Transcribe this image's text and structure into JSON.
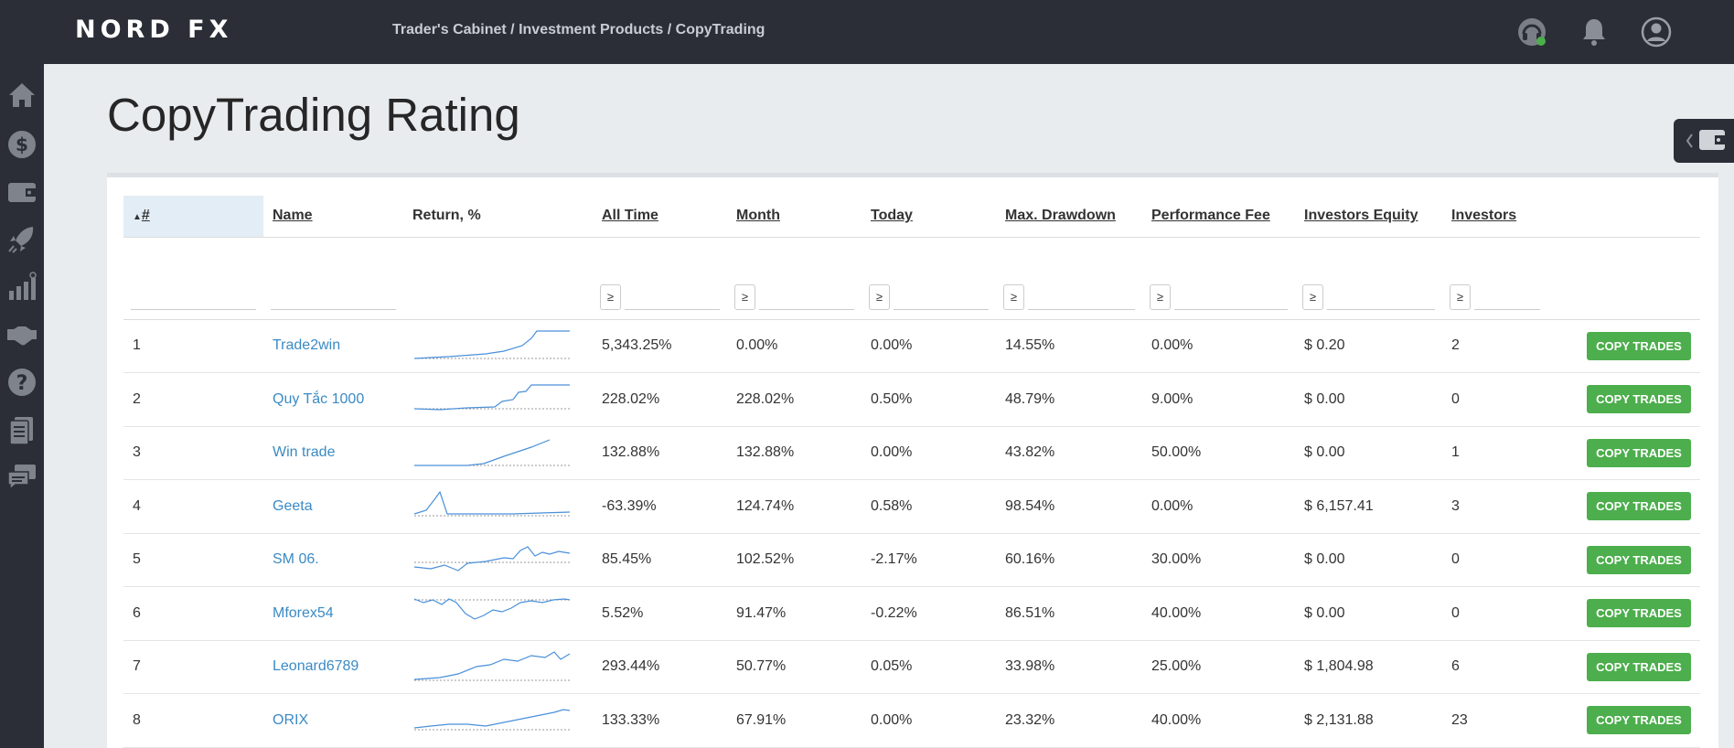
{
  "header": {
    "logo": "NORD FX",
    "breadcrumb": "Trader's Cabinet / Investment Products / CopyTrading",
    "icons": [
      "headset-icon",
      "bell-icon",
      "user-icon"
    ]
  },
  "sidebar": {
    "icons": [
      "home-icon",
      "dollar-icon",
      "wallet-icon",
      "rocket-icon",
      "chart-icon",
      "handshake-icon",
      "help-icon",
      "documents-icon",
      "chat-icon"
    ]
  },
  "page": {
    "title": "CopyTrading Rating"
  },
  "table": {
    "columns": {
      "rank": "#",
      "name": "Name",
      "return": "Return, %",
      "all_time": "All Time",
      "month": "Month",
      "today": "Today",
      "max_drawdown": "Max. Drawdown",
      "performance_fee": "Performance Fee",
      "investors_equity": "Investors Equity",
      "investors": "Investors"
    },
    "sort_indicator": "▲",
    "filter_symbol": "≥",
    "copy_label": "COPY TRADES",
    "rows": [
      {
        "rank": "1",
        "name": "Trade2win",
        "all_time": "5,343.25%",
        "month": "0.00%",
        "today": "0.00%",
        "drawdown": "14.55%",
        "fee": "0.00%",
        "equity": "$ 0.20",
        "investors": "2"
      },
      {
        "rank": "2",
        "name": "Quy Tắc 1000",
        "all_time": "228.02%",
        "month": "228.02%",
        "today": "0.50%",
        "drawdown": "48.79%",
        "fee": "9.00%",
        "equity": "$ 0.00",
        "investors": "0"
      },
      {
        "rank": "3",
        "name": "Win trade",
        "all_time": "132.88%",
        "month": "132.88%",
        "today": "0.00%",
        "drawdown": "43.82%",
        "fee": "50.00%",
        "equity": "$ 0.00",
        "investors": "1"
      },
      {
        "rank": "4",
        "name": "Geeta",
        "all_time": "-63.39%",
        "month": "124.74%",
        "today": "0.58%",
        "drawdown": "98.54%",
        "fee": "0.00%",
        "equity": "$ 6,157.41",
        "investors": "3"
      },
      {
        "rank": "5",
        "name": "SM 06.",
        "all_time": "85.45%",
        "month": "102.52%",
        "today": "-2.17%",
        "drawdown": "60.16%",
        "fee": "30.00%",
        "equity": "$ 0.00",
        "investors": "0"
      },
      {
        "rank": "6",
        "name": "Mforex54",
        "all_time": "5.52%",
        "month": "91.47%",
        "today": "-0.22%",
        "drawdown": "86.51%",
        "fee": "40.00%",
        "equity": "$ 0.00",
        "investors": "0"
      },
      {
        "rank": "7",
        "name": "Leonard6789",
        "all_time": "293.44%",
        "month": "50.77%",
        "today": "0.05%",
        "drawdown": "33.98%",
        "fee": "25.00%",
        "equity": "$ 1,804.98",
        "investors": "6"
      },
      {
        "rank": "8",
        "name": "ORIX",
        "all_time": "133.33%",
        "month": "67.91%",
        "today": "0.00%",
        "drawdown": "23.32%",
        "fee": "40.00%",
        "equity": "$ 2,131.88",
        "investors": "23"
      }
    ]
  },
  "colors": {
    "topbar": "#2b2e36",
    "link": "#3b8ac4",
    "button": "#4cae4c",
    "sparkline": "#4a90d9"
  }
}
